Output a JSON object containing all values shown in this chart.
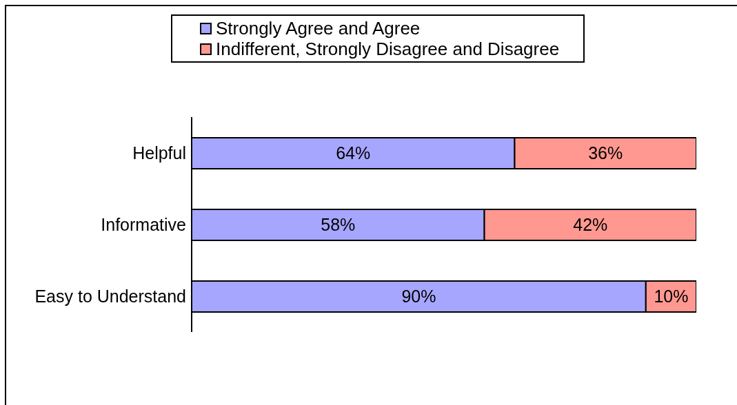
{
  "chart_data": {
    "type": "bar",
    "orientation": "horizontal",
    "stacked": true,
    "categories": [
      "Helpful",
      "Informative",
      "Easy to Understand"
    ],
    "series": [
      {
        "name": "Strongly Agree and Agree",
        "color": "#a6a6ff",
        "values": [
          64,
          58,
          90
        ],
        "value_labels": [
          "64%",
          "58%",
          "90%"
        ]
      },
      {
        "name": "Indifferent, Strongly Disagree and Disagree",
        "color": "#ff9891",
        "values": [
          36,
          42,
          10
        ],
        "value_labels": [
          "36%",
          "42%",
          "10%"
        ]
      }
    ],
    "xlim": [
      0,
      100
    ],
    "tick_labels": "y",
    "legend": "top"
  }
}
